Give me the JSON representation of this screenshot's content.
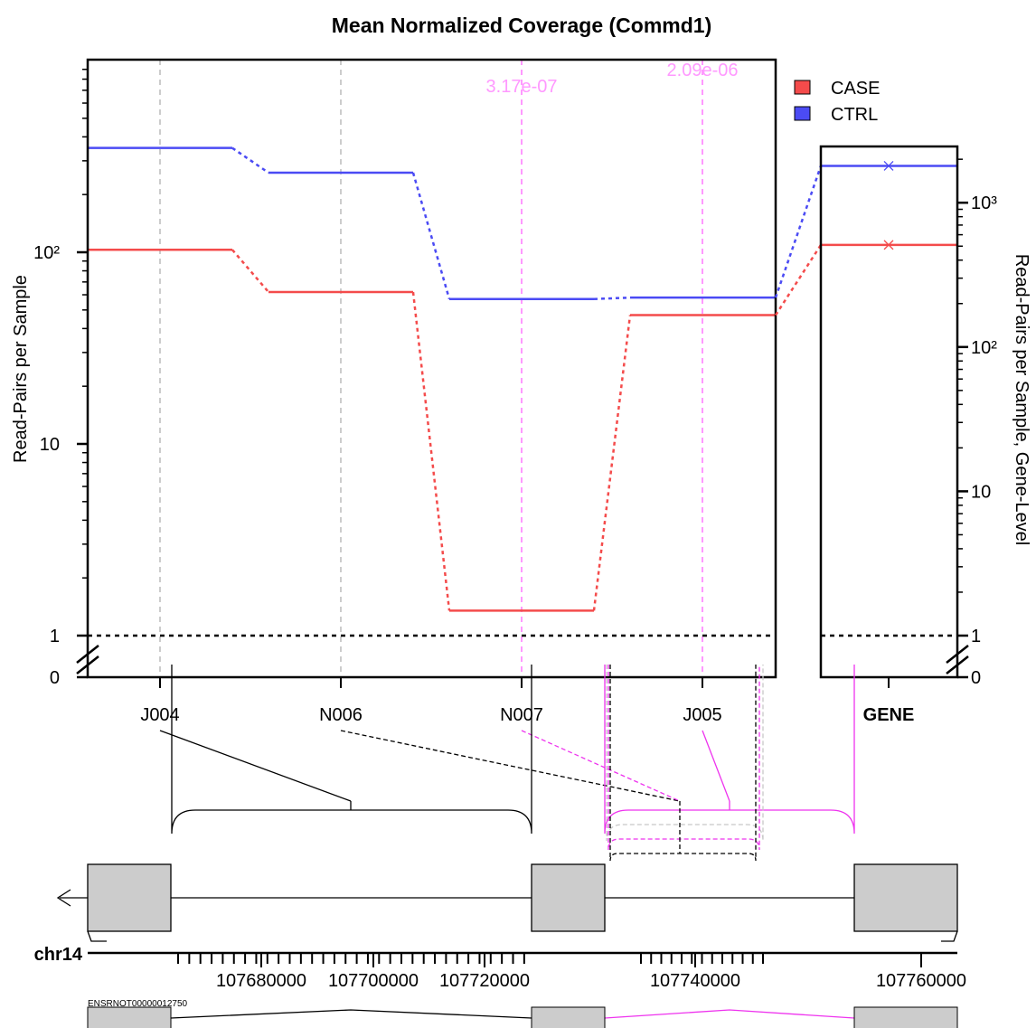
{
  "chart_data": {
    "type": "line",
    "title": "Mean Normalized Coverage (Commd1)",
    "ylabel": "Read-Pairs per Sample",
    "ylabel_right": "Read-Pairs per Sample, Gene-Level",
    "y_scale": "log",
    "y_ticks": [
      {
        "value": 1,
        "label": "1"
      },
      {
        "value": 10,
        "label": "10"
      },
      {
        "value": 100,
        "label": "10²"
      }
    ],
    "y_zero_label": "0",
    "gene_ticks": [
      {
        "value": 1,
        "label": "1"
      },
      {
        "value": 10,
        "label": "10"
      },
      {
        "value": 100,
        "label": "10²"
      },
      {
        "value": 1000,
        "label": "10³"
      }
    ],
    "gene_zero_label": "0",
    "legend": {
      "position": "top-right",
      "items": [
        {
          "name": "CASE",
          "color": "#f44b4b"
        },
        {
          "name": "CTRL",
          "color": "#4b4bf4"
        }
      ]
    },
    "features": [
      "J004",
      "N006",
      "N007",
      "J005"
    ],
    "gene_feature": "GENE",
    "series": [
      {
        "name": "CASE",
        "color": "#f44b4b",
        "values": [
          103,
          62,
          1.35,
          47
        ],
        "gene_value": 510
      },
      {
        "name": "CTRL",
        "color": "#4b4bf4",
        "values": [
          350,
          260,
          57,
          58
        ],
        "gene_value": 1800
      }
    ],
    "pvalues": [
      {
        "feature": "N007",
        "label": "3.17e-07"
      },
      {
        "feature": "J005",
        "label": "2.09e-06"
      }
    ],
    "highlight_color": "#ff99ff",
    "junction_color": "#ee33ee"
  },
  "genome": {
    "chromosome": "chr14",
    "axis_labels": [
      "107680000",
      "107700000",
      "107720000",
      "107740000",
      "107760000"
    ],
    "transcript": "ENSRNOT00000012750"
  }
}
